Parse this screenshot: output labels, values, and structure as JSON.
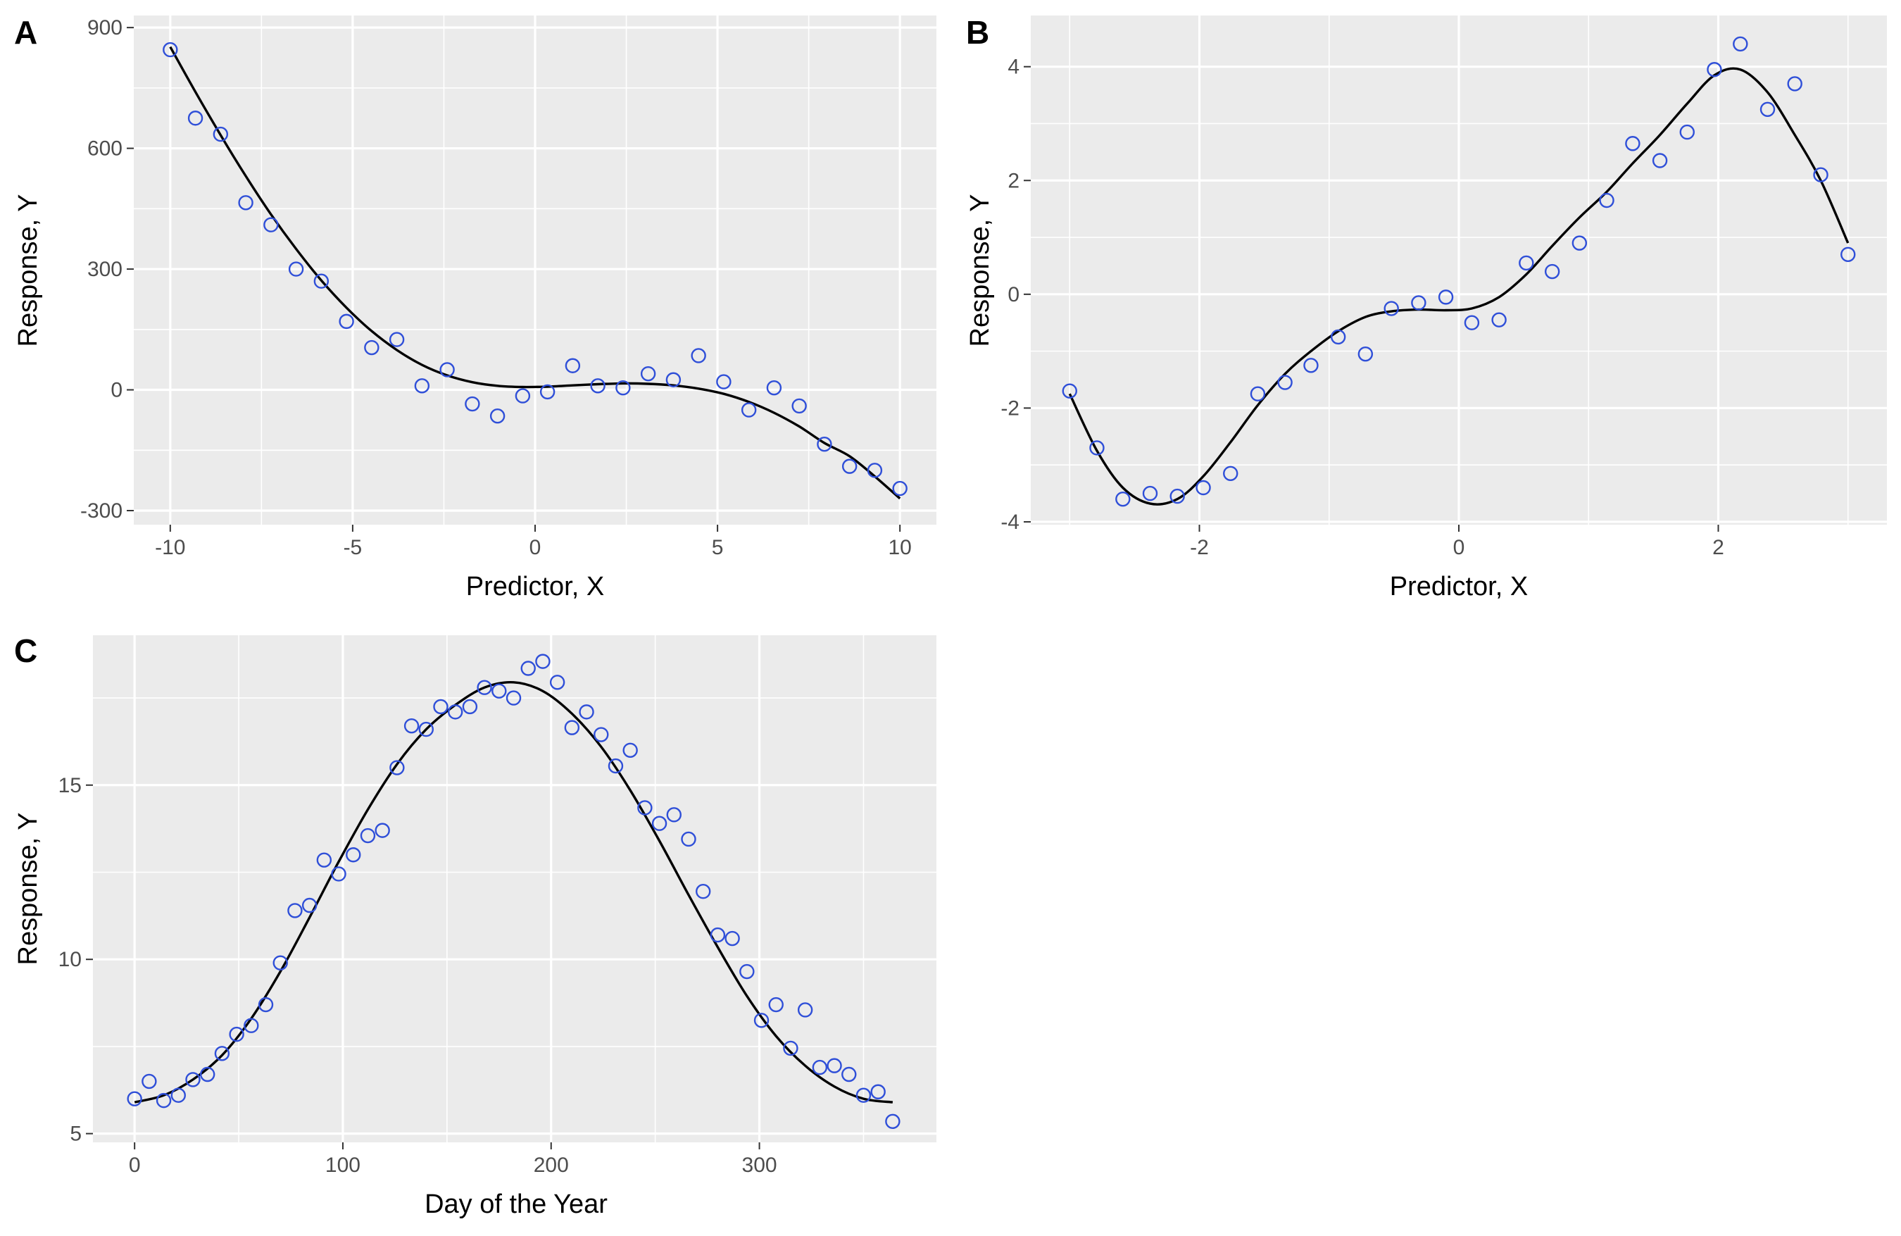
{
  "colors": {
    "point": "#2f4fd8",
    "fit_line": "#000000",
    "panel_background": "#ebebeb",
    "grid": "#ffffff"
  },
  "chart_data": [
    {
      "panel": "A",
      "type": "scatter",
      "xlabel": "Predictor, X",
      "ylabel": "Response, Y",
      "xlim": [
        -11,
        11
      ],
      "ylim": [
        -335,
        930
      ],
      "xticks": [
        -10,
        -5,
        0,
        5,
        10
      ],
      "xtick_labels": [
        "-10",
        "-5",
        "0",
        "5",
        "10"
      ],
      "yticks": [
        -300,
        0,
        300,
        600,
        900
      ],
      "ytick_labels": [
        "-300",
        "0",
        "300",
        "600",
        "900"
      ],
      "grid": true,
      "fit": "smooth curve",
      "x": [
        -10,
        -9.31,
        -8.62,
        -7.93,
        -7.24,
        -6.55,
        -5.86,
        -5.17,
        -4.48,
        -3.79,
        -3.1,
        -2.41,
        -1.72,
        -1.03,
        -0.34,
        0.34,
        1.03,
        1.72,
        2.41,
        3.1,
        3.79,
        4.48,
        5.17,
        5.86,
        6.55,
        7.24,
        7.93,
        8.62,
        9.31,
        10
      ],
      "y": [
        845,
        675,
        635,
        465,
        410,
        300,
        270,
        170,
        105,
        125,
        10,
        50,
        -35,
        -65,
        -15,
        -5,
        60,
        10,
        5,
        40,
        25,
        85,
        20,
        -50,
        5,
        -40,
        -135,
        -190,
        -200,
        -245
      ],
      "fit_x": [
        -10,
        -9.31,
        -8.62,
        -7.93,
        -7.24,
        -6.55,
        -5.86,
        -5.17,
        -4.48,
        -3.79,
        -3.1,
        -2.41,
        -1.72,
        -1.03,
        -0.34,
        0.34,
        1.03,
        1.72,
        2.41,
        3.1,
        3.79,
        4.48,
        5.17,
        5.86,
        6.55,
        7.24,
        7.93,
        8.62,
        9.31,
        10
      ],
      "fit_y": [
        852,
        740,
        633,
        531,
        436,
        350,
        272,
        204,
        146,
        99,
        62,
        36,
        19,
        10,
        7,
        8,
        11,
        14,
        16,
        15,
        11,
        3,
        -10,
        -30,
        -57,
        -91,
        -132,
        -165,
        -215,
        -270
      ]
    },
    {
      "panel": "B",
      "type": "scatter",
      "xlabel": "Predictor, X",
      "ylabel": "Response, Y",
      "xlim": [
        -3.3,
        3.3
      ],
      "ylim": [
        -4.05,
        4.9
      ],
      "xticks": [
        -2,
        0,
        2
      ],
      "xtick_labels": [
        "-2",
        "0",
        "2"
      ],
      "yticks": [
        -4,
        -2,
        0,
        2,
        4
      ],
      "ytick_labels": [
        "-4",
        "-2",
        "0",
        "2",
        "4"
      ],
      "grid": true,
      "fit": "smooth curve",
      "x": [
        -3.0,
        -2.79,
        -2.59,
        -2.38,
        -2.17,
        -1.97,
        -1.76,
        -1.55,
        -1.34,
        -1.14,
        -0.93,
        -0.72,
        -0.52,
        -0.31,
        -0.1,
        0.1,
        0.31,
        0.52,
        0.72,
        0.93,
        1.14,
        1.34,
        1.55,
        1.76,
        1.97,
        2.17,
        2.38,
        2.59,
        2.79,
        3.0
      ],
      "y": [
        -1.7,
        -2.7,
        -3.6,
        -3.5,
        -3.55,
        -3.4,
        -3.15,
        -1.75,
        -1.55,
        -1.25,
        -0.75,
        -1.05,
        -0.25,
        -0.15,
        -0.05,
        -0.5,
        -0.45,
        0.55,
        0.4,
        0.9,
        1.65,
        2.65,
        2.35,
        2.85,
        3.95,
        4.4,
        3.25,
        3.7,
        2.1,
        0.7
      ],
      "fit_x": [
        -3.0,
        -2.79,
        -2.59,
        -2.38,
        -2.17,
        -1.97,
        -1.76,
        -1.55,
        -1.34,
        -1.14,
        -0.93,
        -0.72,
        -0.52,
        -0.31,
        -0.1,
        0.1,
        0.31,
        0.52,
        0.72,
        0.93,
        1.14,
        1.34,
        1.55,
        1.76,
        1.97,
        2.17,
        2.38,
        2.59,
        2.79,
        3.0
      ],
      "fit_y": [
        -1.75,
        -2.75,
        -3.4,
        -3.68,
        -3.6,
        -3.2,
        -2.6,
        -1.95,
        -1.4,
        -1.0,
        -0.65,
        -0.4,
        -0.3,
        -0.27,
        -0.28,
        -0.25,
        -0.05,
        0.35,
        0.85,
        1.35,
        1.8,
        2.3,
        2.8,
        3.35,
        3.85,
        3.95,
        3.55,
        2.8,
        2.0,
        0.9
      ]
    },
    {
      "panel": "C",
      "type": "scatter",
      "xlabel": "Day of the Year",
      "ylabel": "Response, Y",
      "xlim": [
        -20,
        385
      ],
      "ylim": [
        4.75,
        19.3
      ],
      "xticks": [
        0,
        100,
        200,
        300
      ],
      "xtick_labels": [
        "0",
        "100",
        "200",
        "300"
      ],
      "yticks": [
        5,
        10,
        15
      ],
      "ytick_labels": [
        "5",
        "10",
        "15"
      ],
      "grid": true,
      "fit": "smooth curve",
      "x": [
        0,
        7,
        14,
        21,
        28,
        35,
        42,
        49,
        56,
        63,
        70,
        77,
        84,
        91,
        98,
        105,
        112,
        119,
        126,
        133,
        140,
        147,
        154,
        161,
        168,
        175,
        182,
        189,
        196,
        203,
        210,
        217,
        224,
        231,
        238,
        245,
        252,
        259,
        266,
        273,
        280,
        287,
        294,
        301,
        308,
        315,
        322,
        329,
        336,
        343,
        350,
        357,
        364
      ],
      "y": [
        6.0,
        6.5,
        5.95,
        6.1,
        6.55,
        6.7,
        7.3,
        7.85,
        8.1,
        8.7,
        9.9,
        11.4,
        11.55,
        12.85,
        12.45,
        13.0,
        13.55,
        13.7,
        15.5,
        16.7,
        16.6,
        17.25,
        17.1,
        17.25,
        17.8,
        17.7,
        17.5,
        18.35,
        18.55,
        17.95,
        16.65,
        17.1,
        16.45,
        15.55,
        16.0,
        14.35,
        13.9,
        14.15,
        13.45,
        11.95,
        10.7,
        10.6,
        9.65,
        8.25,
        8.7,
        7.45,
        8.55,
        6.9,
        6.95,
        6.7,
        6.1,
        6.2,
        5.35
      ],
      "fit_x": [
        0,
        14,
        28,
        42,
        56,
        70,
        84,
        98,
        112,
        126,
        140,
        154,
        168,
        182,
        196,
        210,
        224,
        238,
        252,
        266,
        280,
        294,
        308,
        322,
        336,
        350,
        364
      ],
      "fit_y": [
        5.9,
        6.1,
        6.55,
        7.25,
        8.3,
        9.65,
        11.2,
        12.8,
        14.3,
        15.6,
        16.6,
        17.3,
        17.8,
        17.95,
        17.7,
        17.05,
        16.1,
        14.85,
        13.4,
        11.85,
        10.35,
        8.95,
        7.8,
        6.95,
        6.35,
        6.0,
        5.9
      ]
    }
  ]
}
